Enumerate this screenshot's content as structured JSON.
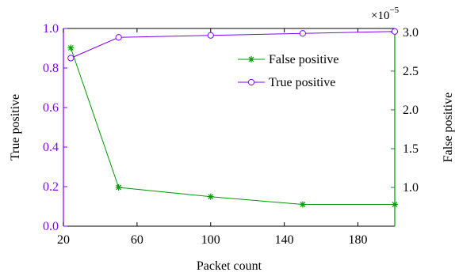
{
  "chart_data": {
    "type": "line",
    "xlabel": "Packet count",
    "ylabel_left": "True positive",
    "ylabel_right": "False positive",
    "xlim": [
      20,
      200
    ],
    "ylim_left": [
      0,
      1
    ],
    "ylim_right": [
      0.5,
      3.05
    ],
    "x_ticks": [
      20,
      60,
      100,
      140,
      180
    ],
    "y_left_ticks": [
      "0.0",
      "0.2",
      "0.4",
      "0.6",
      "0.8",
      "1.0"
    ],
    "y_right_ticks": [
      "1.0",
      "1.5",
      "2.0",
      "2.5",
      "3.0"
    ],
    "right_axis_multiplier": "×10",
    "right_axis_exponent": "−5",
    "legend_position": "upper-right",
    "grid": false,
    "series": [
      {
        "name": "False positive",
        "axis": "right",
        "marker": "asterisk",
        "color": "#009900",
        "x": [
          24,
          50,
          100,
          150,
          200
        ],
        "y": [
          2.8,
          1.0,
          0.88,
          0.78,
          0.78
        ]
      },
      {
        "name": "True positive",
        "axis": "left",
        "marker": "circle",
        "color": "#7f00ff",
        "x": [
          24,
          50,
          100,
          150,
          200
        ],
        "y": [
          0.85,
          0.955,
          0.965,
          0.975,
          0.985
        ]
      }
    ]
  },
  "colors": {
    "left_axis": "#7f00ff",
    "right_axis": "#009900",
    "frame": "#000000"
  }
}
